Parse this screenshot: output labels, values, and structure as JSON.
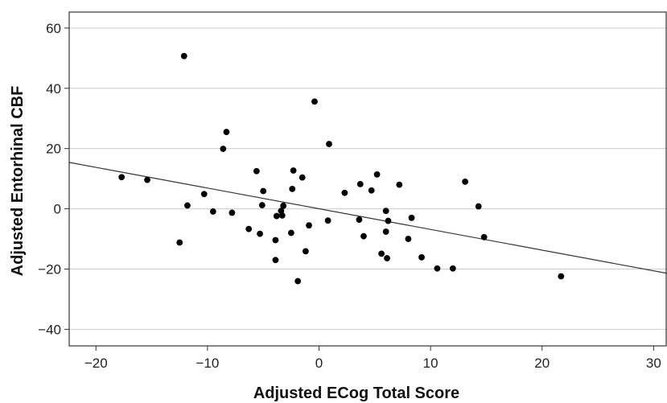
{
  "chart_data": {
    "type": "scatter",
    "title": "",
    "xlabel": "Adjusted ECog Total Score",
    "ylabel": "Adjusted Entorhinal CBF",
    "xlim": [
      -22.4,
      31.2
    ],
    "ylim": [
      -45.5,
      65.3
    ],
    "xticks": [
      -20,
      -10,
      0,
      10,
      20,
      30
    ],
    "yticks": [
      -40,
      -20,
      0,
      20,
      40,
      60
    ],
    "xtick_labels": [
      "−20",
      "−10",
      "0",
      "10",
      "20",
      "30"
    ],
    "ytick_labels": [
      "−40",
      "−20",
      "0",
      "20",
      "40",
      "60"
    ],
    "grid": "horizontal",
    "colors": {
      "points": "#000000",
      "fit_line": "#333333",
      "grid": "#cccccc",
      "frame": "#333333"
    },
    "fit_line": {
      "x": [
        -22.4,
        31.2
      ],
      "y": [
        15.4,
        -21.4
      ]
    },
    "points": [
      {
        "x": -12.1,
        "y": 50.7
      },
      {
        "x": -0.4,
        "y": 35.6
      },
      {
        "x": -8.3,
        "y": 25.5
      },
      {
        "x": 0.9,
        "y": 21.5
      },
      {
        "x": -8.6,
        "y": 19.9
      },
      {
        "x": -17.7,
        "y": 10.5
      },
      {
        "x": -15.4,
        "y": 9.6
      },
      {
        "x": -5.6,
        "y": 12.5
      },
      {
        "x": -2.3,
        "y": 12.7
      },
      {
        "x": -1.5,
        "y": 10.4
      },
      {
        "x": 5.2,
        "y": 11.4
      },
      {
        "x": 3.7,
        "y": 8.2
      },
      {
        "x": 7.2,
        "y": 8.0
      },
      {
        "x": 13.1,
        "y": 9.0
      },
      {
        "x": -2.4,
        "y": 6.6
      },
      {
        "x": -5.0,
        "y": 5.9
      },
      {
        "x": 2.3,
        "y": 5.3
      },
      {
        "x": 4.7,
        "y": 6.1
      },
      {
        "x": -10.3,
        "y": 4.9
      },
      {
        "x": -11.8,
        "y": 1.1
      },
      {
        "x": -5.1,
        "y": 1.2
      },
      {
        "x": -3.2,
        "y": 1.0
      },
      {
        "x": 14.3,
        "y": 0.8
      },
      {
        "x": -9.5,
        "y": -0.9
      },
      {
        "x": -7.8,
        "y": -1.3
      },
      {
        "x": -3.8,
        "y": -2.4
      },
      {
        "x": -3.4,
        "y": -0.7
      },
      {
        "x": -3.3,
        "y": -2.2
      },
      {
        "x": 6.0,
        "y": -0.7
      },
      {
        "x": 3.6,
        "y": -3.6
      },
      {
        "x": 0.8,
        "y": -3.9
      },
      {
        "x": 6.2,
        "y": -4.0
      },
      {
        "x": 8.3,
        "y": -3.0
      },
      {
        "x": -0.9,
        "y": -5.5
      },
      {
        "x": -6.3,
        "y": -6.7
      },
      {
        "x": -5.3,
        "y": -8.3
      },
      {
        "x": -2.5,
        "y": -8.0
      },
      {
        "x": 6.0,
        "y": -7.6
      },
      {
        "x": 4.0,
        "y": -9.1
      },
      {
        "x": 8.0,
        "y": -10.0
      },
      {
        "x": 14.8,
        "y": -9.4
      },
      {
        "x": -12.5,
        "y": -11.2
      },
      {
        "x": -3.9,
        "y": -10.4
      },
      {
        "x": -1.2,
        "y": -14.1
      },
      {
        "x": 5.6,
        "y": -14.9
      },
      {
        "x": 6.1,
        "y": -16.4
      },
      {
        "x": 9.2,
        "y": -16.1
      },
      {
        "x": -3.9,
        "y": -17.0
      },
      {
        "x": 10.6,
        "y": -19.8
      },
      {
        "x": 12.0,
        "y": -19.8
      },
      {
        "x": -1.9,
        "y": -24.0
      },
      {
        "x": 21.7,
        "y": -22.4
      }
    ]
  }
}
